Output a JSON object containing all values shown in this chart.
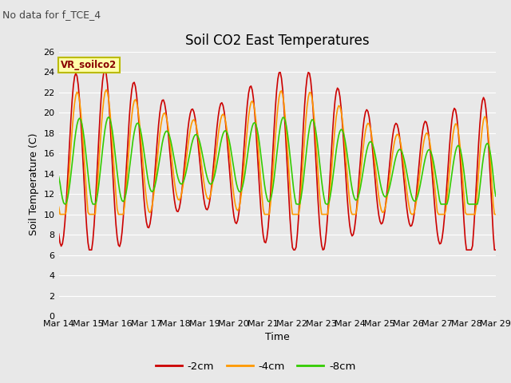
{
  "title": "Soil CO2 East Temperatures",
  "subtitle": "No data for f_TCE_4",
  "xlabel": "Time",
  "ylabel": "Soil Temperature (C)",
  "legend_label": "VR_soilco2",
  "ylim": [
    0,
    26
  ],
  "yticks": [
    0,
    2,
    4,
    6,
    8,
    10,
    12,
    14,
    16,
    18,
    20,
    22,
    24,
    26
  ],
  "xtick_labels": [
    "Mar 14",
    "Mar 15",
    "Mar 16",
    "Mar 17",
    "Mar 18",
    "Mar 19",
    "Mar 20",
    "Mar 21",
    "Mar 22",
    "Mar 23",
    "Mar 24",
    "Mar 25",
    "Mar 26",
    "Mar 27",
    "Mar 28",
    "Mar 29"
  ],
  "bg_color": "#e8e8e8",
  "line_colors": [
    "#cc0000",
    "#ff9900",
    "#33cc00"
  ],
  "line_labels": [
    "-2cm",
    "-4cm",
    "-8cm"
  ],
  "grid_color": "#ffffff",
  "title_fontsize": 12,
  "subtitle_fontsize": 9,
  "axis_label_fontsize": 9,
  "tick_fontsize": 8
}
